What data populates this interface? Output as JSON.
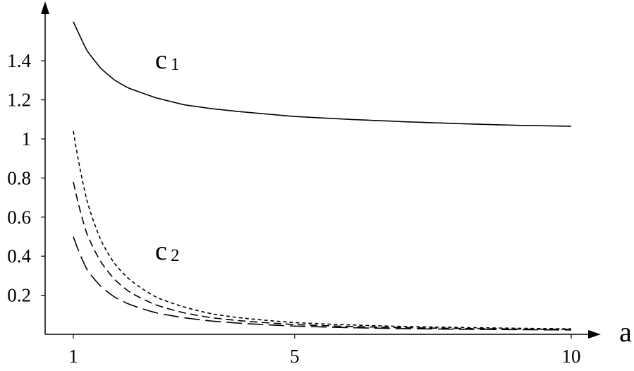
{
  "chart_data": {
    "type": "line",
    "title": "",
    "xlabel": "a",
    "ylabel": "",
    "xlim": [
      0.5,
      11.0
    ],
    "ylim": [
      0,
      1.7
    ],
    "x_ticks": [
      1,
      5,
      10
    ],
    "x_tick_labels": [
      "1",
      "5",
      "10"
    ],
    "y_ticks": [
      0.2,
      0.4,
      0.6,
      0.8,
      1.0,
      1.2,
      1.4
    ],
    "y_tick_labels": [
      "0.2",
      "0.4",
      "0.6",
      "0.8",
      "1",
      "1.2",
      "1.4"
    ],
    "grid": false,
    "legend": "none",
    "annotations": [
      {
        "main": "c",
        "sub": "1"
      },
      {
        "main": "c",
        "sub": "2"
      }
    ],
    "series": [
      {
        "group": "c1",
        "style": "solid",
        "x": [
          1,
          1.25,
          1.5,
          1.75,
          2,
          2.5,
          3,
          3.5,
          4,
          5,
          6,
          7,
          8,
          9,
          10
        ],
        "values": [
          1.6,
          1.45,
          1.36,
          1.3,
          1.26,
          1.21,
          1.175,
          1.155,
          1.14,
          1.115,
          1.1,
          1.088,
          1.078,
          1.07,
          1.065
        ]
      },
      {
        "group": "c2",
        "style": "short-dash",
        "x": [
          1,
          1.25,
          1.5,
          1.75,
          2,
          2.5,
          3,
          3.5,
          4,
          5,
          6,
          7,
          8,
          9,
          10
        ],
        "values": [
          1.04,
          0.68,
          0.48,
          0.36,
          0.285,
          0.19,
          0.14,
          0.105,
          0.085,
          0.06,
          0.048,
          0.04,
          0.035,
          0.031,
          0.028
        ]
      },
      {
        "group": "c2",
        "style": "medium-dash",
        "x": [
          1,
          1.25,
          1.5,
          1.75,
          2,
          2.5,
          3,
          3.5,
          4,
          5,
          6,
          7,
          8,
          9,
          10
        ],
        "values": [
          0.78,
          0.51,
          0.37,
          0.28,
          0.22,
          0.15,
          0.11,
          0.085,
          0.07,
          0.05,
          0.04,
          0.034,
          0.03,
          0.027,
          0.025
        ]
      },
      {
        "group": "c2",
        "style": "long-dash",
        "x": [
          1,
          1.25,
          1.5,
          1.75,
          2,
          2.5,
          3,
          3.5,
          4,
          5,
          6,
          7,
          8,
          9,
          10
        ],
        "values": [
          0.5,
          0.33,
          0.245,
          0.19,
          0.155,
          0.11,
          0.085,
          0.068,
          0.057,
          0.042,
          0.034,
          0.029,
          0.026,
          0.024,
          0.022
        ]
      }
    ],
    "colors": {
      "line": "#000000",
      "background": "#ffffff"
    }
  }
}
